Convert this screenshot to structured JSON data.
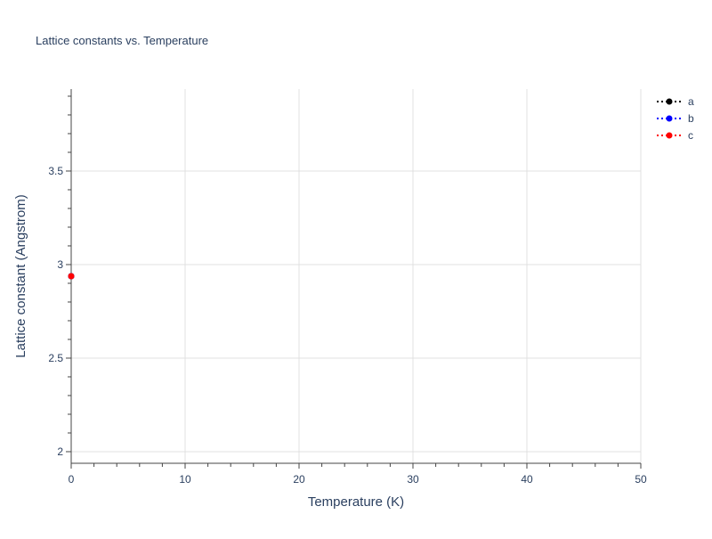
{
  "chart_data": {
    "type": "line",
    "title": "Lattice constants vs. Temperature",
    "xlabel": "Temperature (K)",
    "ylabel": "Lattice constant (Angstrom)",
    "xlim": [
      0,
      50
    ],
    "ylim": [
      1.938,
      3.938
    ],
    "x_ticks": [
      0,
      10,
      20,
      30,
      40,
      50
    ],
    "y_ticks": [
      2,
      2.5,
      3,
      3.5
    ],
    "x_tick_labels": [
      "0",
      "10",
      "20",
      "30",
      "40",
      "50"
    ],
    "y_tick_labels": [
      "2",
      "2.5",
      "3",
      "3.5"
    ],
    "x_minor_step": 2,
    "y_minor_step": 0.1,
    "grid": true,
    "legend_placement": "top-right",
    "line_style": "dotted with markers",
    "series": [
      {
        "name": "a",
        "color": "#000000",
        "x": [
          0
        ],
        "y": [
          2.938
        ]
      },
      {
        "name": "b",
        "color": "#0000ff",
        "x": [
          0
        ],
        "y": [
          2.938
        ]
      },
      {
        "name": "c",
        "color": "#ff0000",
        "x": [
          0
        ],
        "y": [
          2.938
        ]
      }
    ]
  }
}
